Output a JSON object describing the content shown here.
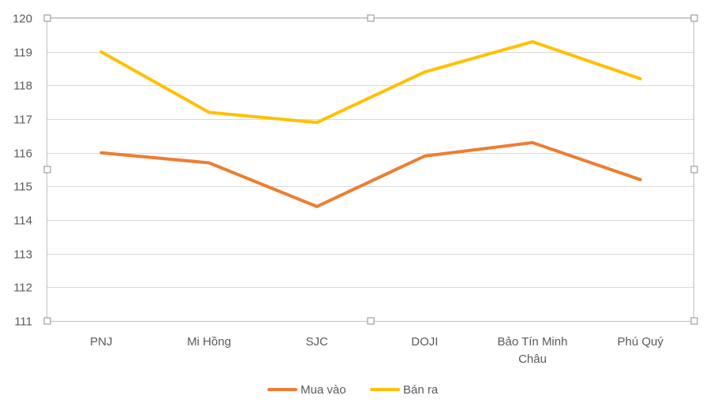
{
  "chart_data": {
    "type": "line",
    "categories": [
      [
        "PNJ"
      ],
      [
        "Mi Hồng"
      ],
      [
        "SJC"
      ],
      [
        "DOJI"
      ],
      [
        "Bảo Tín Minh",
        "Châu"
      ],
      [
        "Phú Quý"
      ]
    ],
    "series": [
      {
        "name": "Mua vào",
        "color": "#ed7d31",
        "values": [
          116.0,
          115.7,
          114.4,
          115.9,
          116.3,
          115.2
        ]
      },
      {
        "name": "Bán ra",
        "color": "#ffc000",
        "values": [
          119.0,
          117.2,
          116.9,
          118.4,
          119.3,
          118.2
        ]
      }
    ],
    "ylim": [
      111,
      120
    ],
    "yticks": [
      111,
      112,
      113,
      114,
      115,
      116,
      117,
      118,
      119,
      120
    ],
    "grid": true,
    "legend": "bottom"
  }
}
